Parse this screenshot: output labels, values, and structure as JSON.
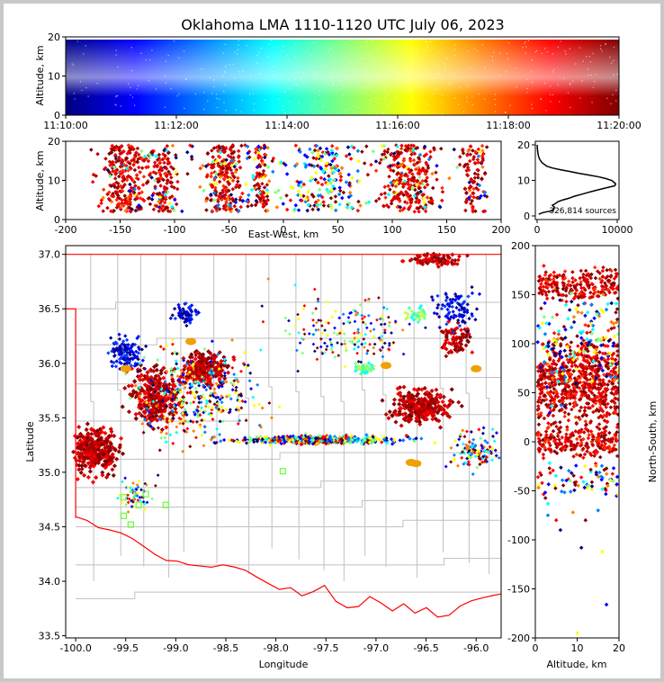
{
  "colors": {
    "border": "#c8c8c8",
    "state_line": "#ff0000",
    "county_line": "#c0c0c0",
    "jet": [
      "#00007f",
      "#0000ff",
      "#007fff",
      "#00ffff",
      "#7fff7f",
      "#ffff00",
      "#ff7f00",
      "#ff0000",
      "#7f0000"
    ]
  },
  "chart_data": [
    {
      "panel": "time-altitude",
      "type": "scatter",
      "title": "Oklahoma LMA 1110-1120 UTC July 06, 2023",
      "ylabel": "Altitude, km",
      "xlabel": "",
      "ylim": [
        0,
        20
      ],
      "xlim": [
        "11:10:00",
        "11:20:00"
      ],
      "x_ticks": [
        "11:10:00",
        "11:12:00",
        "11:14:00",
        "11:16:00",
        "11:18:00",
        "11:20:00"
      ],
      "y_ticks": [
        "0",
        "10",
        "20"
      ],
      "colored_by": "time"
    },
    {
      "panel": "east-west-altitude",
      "type": "scatter",
      "xlabel": "East-West, km",
      "ylabel": "Altitude, km",
      "xlim": [
        -200,
        200
      ],
      "ylim": [
        0,
        20
      ],
      "x_ticks": [
        "-200",
        "-150",
        "-100",
        "-50",
        "0",
        "50",
        "100",
        "150",
        "200"
      ],
      "y_ticks": [
        "0",
        "10",
        "20"
      ]
    },
    {
      "panel": "altitude-histogram",
      "type": "line",
      "xlim": [
        0,
        10000
      ],
      "ylim": [
        0,
        20
      ],
      "x_ticks": [
        "0",
        "10000"
      ],
      "y_ticks": [
        "0",
        "10",
        "20"
      ],
      "annotation": "326,814 sources",
      "profile": {
        "altitude_km": [
          0.5,
          1,
          1.5,
          2,
          2.5,
          3,
          3.5,
          4,
          4.5,
          5,
          5.5,
          6,
          6.5,
          7,
          7.5,
          8,
          8.5,
          9,
          9.5,
          10,
          10.5,
          11,
          11.5,
          12,
          12.5,
          13,
          13.5,
          14,
          15,
          16,
          17,
          18,
          19,
          20
        ],
        "count": [
          200,
          800,
          2000,
          2100,
          2150,
          1900,
          2300,
          2600,
          3200,
          4000,
          4600,
          5400,
          6200,
          7000,
          7900,
          8800,
          9700,
          9800,
          9600,
          9300,
          8600,
          7700,
          6500,
          5200,
          4100,
          2900,
          1900,
          1200,
          600,
          300,
          150,
          80,
          30,
          10
        ]
      }
    },
    {
      "panel": "plan-view",
      "type": "scatter",
      "xlabel": "Longitude",
      "ylabel": "Latitude",
      "xlim": [
        -100.1,
        -95.75
      ],
      "ylim": [
        33.48,
        37.08
      ],
      "x_ticks": [
        "-100.0",
        "-99.5",
        "-99.0",
        "-98.5",
        "-98.0",
        "-97.5",
        "-97.0",
        "-96.5",
        "-96.0"
      ],
      "y_ticks": [
        "33.5",
        "34.0",
        "34.5",
        "35.0",
        "35.5",
        "36.0",
        "36.5",
        "37.0"
      ],
      "station_markers": [
        [
          -99.52,
          34.6
        ],
        [
          -99.45,
          34.52
        ],
        [
          -99.37,
          34.7
        ],
        [
          -99.3,
          34.8
        ],
        [
          -99.52,
          34.77
        ],
        [
          -99.1,
          34.7
        ],
        [
          -97.93,
          35.01
        ]
      ]
    },
    {
      "panel": "north-south-altitude",
      "type": "scatter",
      "xlabel": "Altitude, km",
      "ylabel": "North-South, km",
      "xlim": [
        0,
        20
      ],
      "ylim": [
        -200,
        200
      ],
      "x_ticks": [
        "0",
        "10",
        "20"
      ],
      "y_ticks": [
        "-200",
        "-150",
        "-100",
        "-50",
        "0",
        "50",
        "100",
        "150",
        "200"
      ]
    }
  ]
}
